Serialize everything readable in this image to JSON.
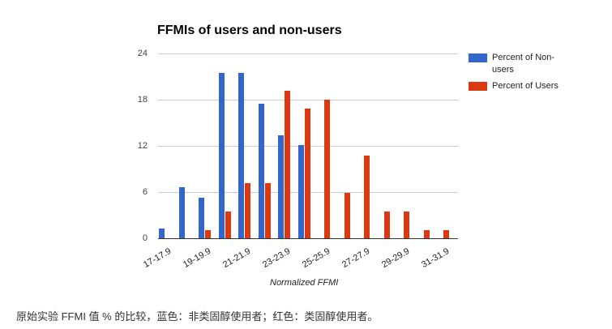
{
  "chart_data": {
    "type": "bar",
    "title": "FFMIs of users and non-users",
    "xlabel": "Normalized FFMI",
    "ylabel": "",
    "ylim": [
      0,
      24
    ],
    "yticks": [
      0,
      6,
      12,
      18,
      24
    ],
    "grid": true,
    "legend_position": "right",
    "categories": [
      "17-17.9",
      "18-18.9",
      "19-19.9",
      "20-20.9",
      "21-21.9",
      "22-22.9",
      "23-23.9",
      "24-24.9",
      "25-25.9",
      "26-26.9",
      "27-27.9",
      "28-28.9",
      "29-29.9",
      "30-30.9",
      "31-31.9"
    ],
    "visible_tick_labels": [
      "17-17.9",
      "19-19.9",
      "21-21.9",
      "23-23.9",
      "25-25.9",
      "27-27.9",
      "29-29.9",
      "31-31.9"
    ],
    "series": [
      {
        "name": "Percent of Non-users",
        "color": "#3366cc",
        "values": [
          1.3,
          6.6,
          5.3,
          21.5,
          21.5,
          17.5,
          13.4,
          12.1,
          0,
          0,
          0,
          0,
          0,
          0,
          0
        ]
      },
      {
        "name": "Percent of Users",
        "color": "#dc3912",
        "values": [
          0,
          0,
          1.1,
          3.5,
          7.2,
          7.2,
          19.2,
          16.8,
          18.0,
          5.9,
          10.7,
          3.5,
          3.5,
          1.1,
          1.1
        ]
      }
    ]
  },
  "chart": {
    "title": "FFMIs of users and non-users",
    "xlabel": "Normalized FFMI",
    "yticks": [
      "24",
      "18",
      "12",
      "6",
      "0"
    ],
    "xticks": [
      "17-17.9",
      "19-19.9",
      "21-21.9",
      "23-23.9",
      "25-25.9",
      "27-27.9",
      "29-29.9",
      "31-31.9"
    ],
    "legend": [
      {
        "label": "Percent of Non-users",
        "color": "#3366cc"
      },
      {
        "label": "Percent of Users",
        "color": "#dc3912"
      }
    ]
  },
  "caption": "原始实验 FFMI 值 % 的比较，蓝色：非类固醇使用者；红色：类固醇使用者。"
}
